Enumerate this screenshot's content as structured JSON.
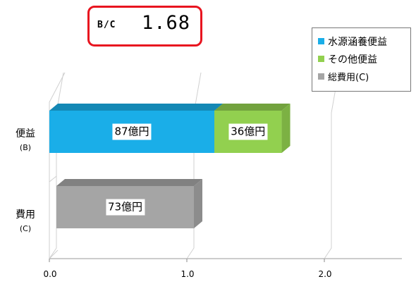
{
  "bc": {
    "label": "B/C",
    "value": "1.68"
  },
  "legend": [
    {
      "label": "水源涵養便益",
      "color": "#1aaee8"
    },
    {
      "label": "その他便益",
      "color": "#92d04f"
    },
    {
      "label": "総費用(C)",
      "color": "#a5a5a5"
    }
  ],
  "chart_data": {
    "type": "bar",
    "orientation": "horizontal",
    "stacked": true,
    "categories": [
      {
        "main": "便益",
        "sub": "(B)"
      },
      {
        "main": "費用",
        "sub": "(C)"
      }
    ],
    "series": [
      {
        "name": "水源涵養便益",
        "values": [
          1.2,
          0
        ],
        "label": "87億円",
        "color": "#1aaee8"
      },
      {
        "name": "その他便益",
        "values": [
          0.49,
          0
        ],
        "label": "36億円",
        "color": "#92d04f"
      },
      {
        "name": "総費用(C)",
        "values": [
          0,
          1.0
        ],
        "label": "73億円",
        "color": "#a5a5a5"
      }
    ],
    "x_ticks": [
      "0.0",
      "1.0",
      "2.0"
    ],
    "xlim": [
      0,
      2
    ],
    "grid": true,
    "legend_position": "top-right"
  }
}
